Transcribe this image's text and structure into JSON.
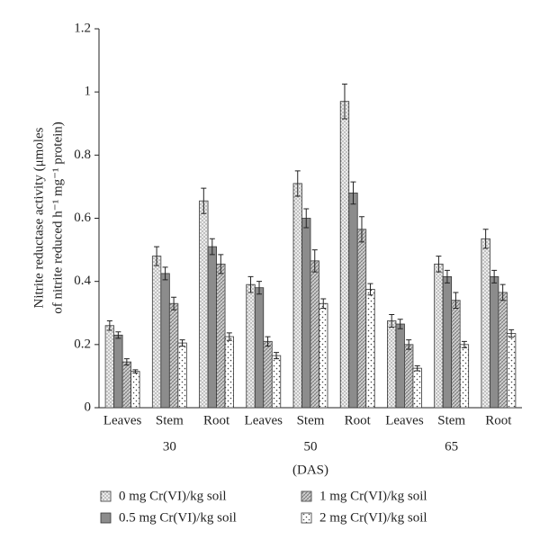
{
  "chart_data": {
    "type": "bar",
    "y_label": [
      "Nitrite reductase activity (μmoles",
      "of nitrite reduced h⁻¹ mg⁻¹ protein)"
    ],
    "x_label": "(DAS)",
    "categories": [
      "Leaves",
      "Stem",
      "Root",
      "Leaves",
      "Stem",
      "Root",
      "Leaves",
      "Stem",
      "Root"
    ],
    "group_labels": [
      "30",
      "50",
      "65"
    ],
    "series": [
      {
        "name": "0 mg Cr(VI)/kg soil",
        "color": "#ececec",
        "values": [
          0.26,
          0.48,
          0.655,
          0.39,
          0.71,
          0.97,
          0.275,
          0.455,
          0.535
        ],
        "errors": [
          0.015,
          0.03,
          0.04,
          0.025,
          0.04,
          0.055,
          0.02,
          0.025,
          0.03
        ]
      },
      {
        "name": "0.5 mg Cr(VI)/kg soil",
        "color": "#8c8c8c",
        "values": [
          0.23,
          0.425,
          0.51,
          0.38,
          0.6,
          0.68,
          0.265,
          0.415,
          0.415
        ],
        "errors": [
          0.01,
          0.02,
          0.025,
          0.02,
          0.03,
          0.035,
          0.015,
          0.02,
          0.02
        ]
      },
      {
        "name": "1 mg Cr(VI)/kg soil",
        "color": "#d0d0d0",
        "values": [
          0.145,
          0.33,
          0.455,
          0.21,
          0.465,
          0.565,
          0.2,
          0.34,
          0.365
        ],
        "errors": [
          0.01,
          0.02,
          0.03,
          0.015,
          0.035,
          0.04,
          0.015,
          0.025,
          0.025
        ]
      },
      {
        "name": "2 mg Cr(VI)/kg soil",
        "color": "#ffffff",
        "values": [
          0.115,
          0.205,
          0.225,
          0.165,
          0.33,
          0.375,
          0.125,
          0.2,
          0.235
        ],
        "errors": [
          0.005,
          0.01,
          0.012,
          0.01,
          0.015,
          0.018,
          0.008,
          0.01,
          0.012
        ]
      }
    ],
    "ylim": [
      0,
      1.2
    ],
    "yticks": [
      0,
      0.2,
      0.4,
      0.6,
      0.8,
      1,
      1.2
    ],
    "grid": false
  }
}
